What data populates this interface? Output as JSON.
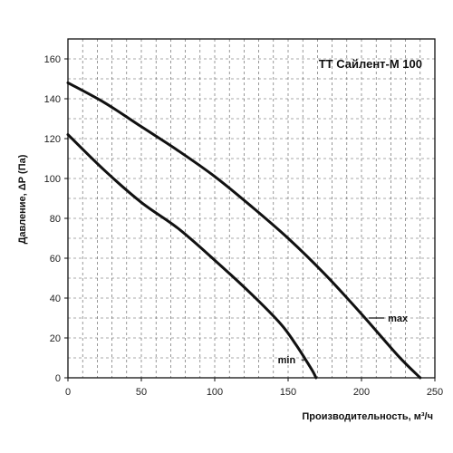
{
  "chart_data": {
    "type": "line",
    "title": "ТТ Сайлент-М 100",
    "xlabel": "Производительность, м³/ч",
    "ylabel": "Давление, ΔР (Па)",
    "xlim": [
      0,
      250
    ],
    "ylim": [
      0,
      170
    ],
    "xticks": [
      0,
      50,
      100,
      150,
      200,
      250
    ],
    "yticks": [
      0,
      20,
      40,
      60,
      80,
      100,
      120,
      140,
      160
    ],
    "x_minor_step": 10,
    "y_minor_step": 10,
    "grid": true,
    "grid_style": "dashed",
    "series": [
      {
        "name": "max",
        "x": [
          0,
          25,
          50,
          75,
          100,
          125,
          150,
          175,
          200,
          225,
          240
        ],
        "y": [
          148,
          138,
          126,
          114,
          101,
          86,
          70,
          52,
          32,
          11,
          0
        ]
      },
      {
        "name": "min",
        "x": [
          0,
          25,
          50,
          75,
          100,
          125,
          145,
          155,
          162,
          167,
          169
        ],
        "y": [
          122,
          104,
          88,
          75,
          59,
          42,
          27,
          17,
          9,
          3,
          0
        ]
      }
    ],
    "annotations": [
      {
        "series": "max",
        "text": "max",
        "x": 218,
        "y": 30
      },
      {
        "series": "min",
        "text": "min",
        "x": 143,
        "y": 9
      }
    ]
  },
  "colors": {
    "curve": "#111111",
    "grid": "#555555",
    "axis": "#111111",
    "background": "#ffffff"
  }
}
